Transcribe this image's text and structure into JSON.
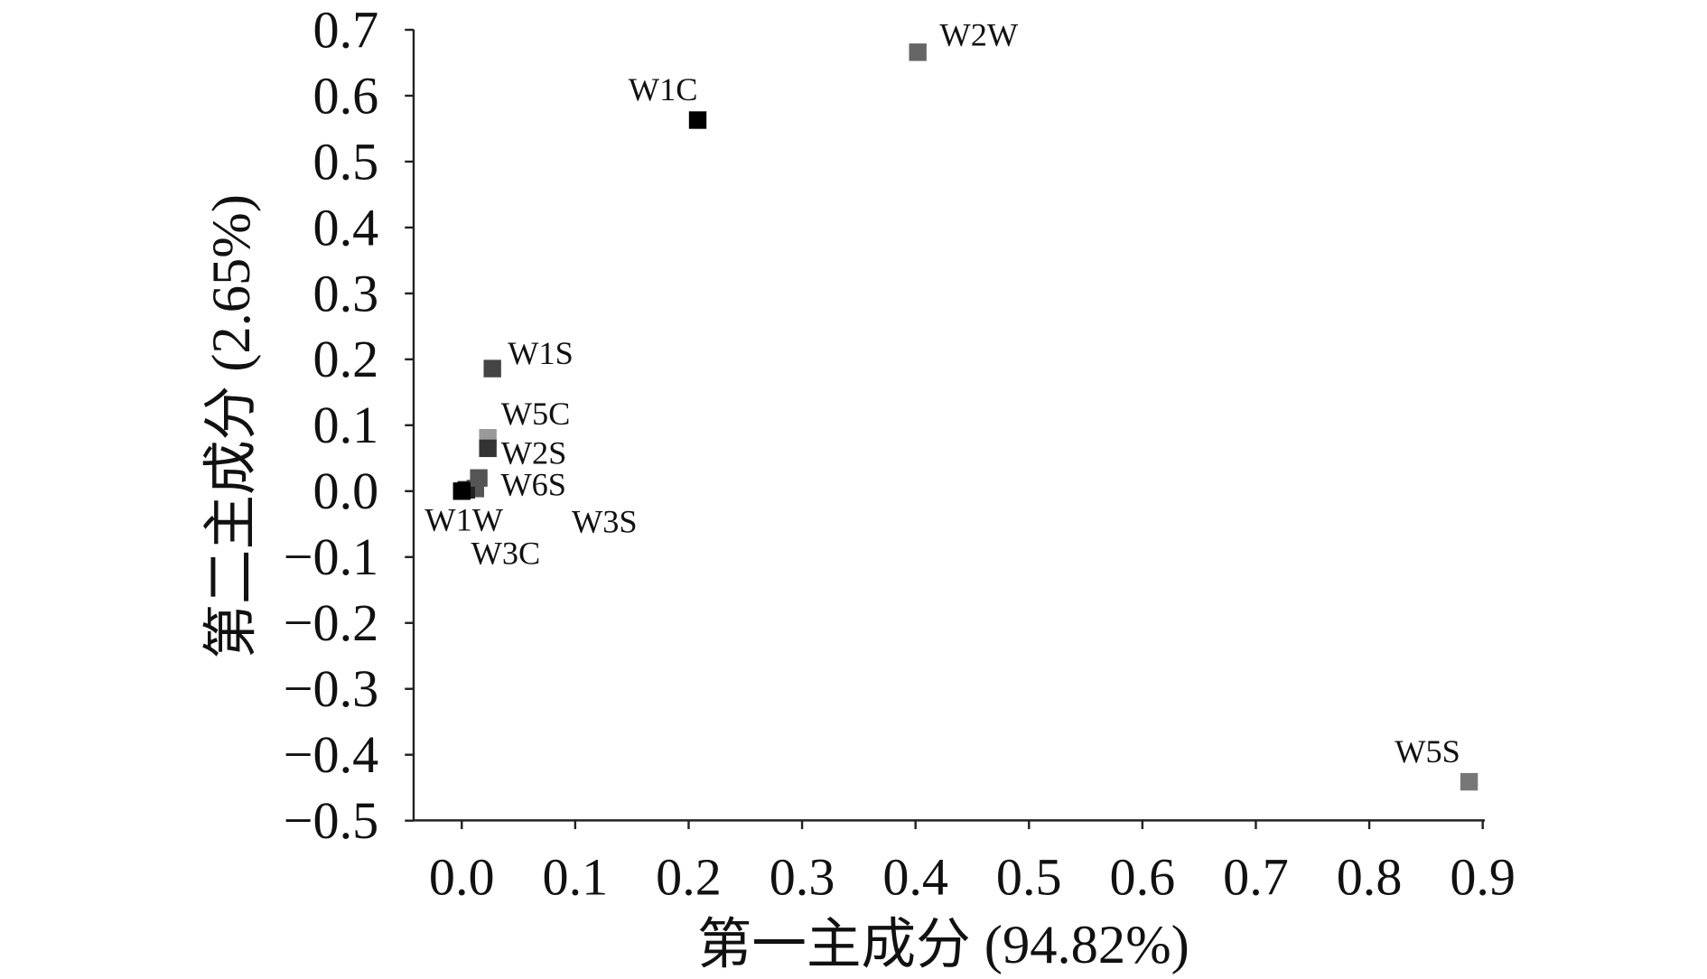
{
  "chart_data": {
    "type": "scatter",
    "xlabel": "第一主成分 (94.82%)",
    "ylabel": "第二主成分 (2.65%)",
    "xlim": [
      -0.04,
      0.91
    ],
    "ylim": [
      -0.5,
      0.7
    ],
    "xticks": [
      "0.0",
      "0.1",
      "0.2",
      "0.3",
      "0.4",
      "0.5",
      "0.6",
      "0.7",
      "0.8",
      "0.9"
    ],
    "yticks": [
      "0.7",
      "0.6",
      "0.5",
      "0.4",
      "0.3",
      "0.2",
      "0.1",
      "0.0",
      "−0.1",
      "−0.2",
      "−0.3",
      "−0.4",
      "−0.5"
    ],
    "grid": false,
    "points": [
      {
        "label": "W2W",
        "x": 0.402,
        "y": 0.666,
        "color": "#666666"
      },
      {
        "label": "W1C",
        "x": 0.208,
        "y": 0.563,
        "color": "#000000"
      },
      {
        "label": "W1S",
        "x": 0.027,
        "y": 0.186,
        "color": "#444444"
      },
      {
        "label": "W3S",
        "x": 0.012,
        "y": 0.004,
        "color": "#555555"
      },
      {
        "label": "W3C",
        "x": 0.004,
        "y": 0.002,
        "color": "#222222"
      },
      {
        "label": "W5C",
        "x": 0.023,
        "y": 0.081,
        "color": "#999999"
      },
      {
        "label": "W2S",
        "x": 0.023,
        "y": 0.065,
        "color": "#333333"
      },
      {
        "label": "W6S",
        "x": 0.015,
        "y": 0.02,
        "color": "#555555"
      },
      {
        "label": "W1W",
        "x": 0.0,
        "y": 0.0,
        "color": "#000000"
      },
      {
        "label": "W5S",
        "x": 0.888,
        "y": -0.441,
        "color": "#777777"
      }
    ]
  }
}
